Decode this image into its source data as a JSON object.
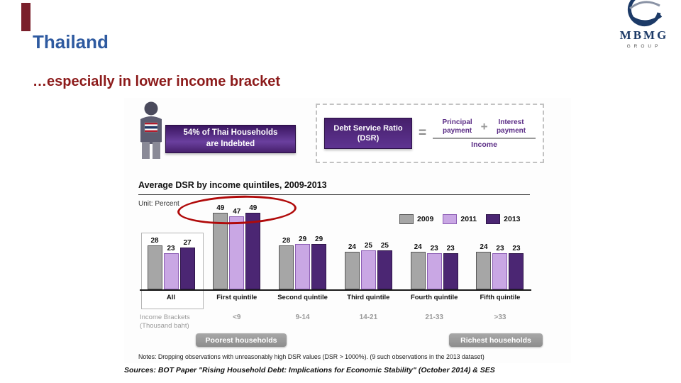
{
  "slide": {
    "title": "Thailand",
    "subtitle": "…especially in lower income bracket",
    "sources": "Sources: BOT Paper \"Rising Household Debt: Implications for Economic Stability\" (October 2014) & SES"
  },
  "logo": {
    "brand": "MBMG",
    "sub": "GROUP"
  },
  "infographic": {
    "banner_line1": "54% of Thai Households",
    "banner_line2": "are Indebted",
    "dsr_line1": "Debt Service Ratio",
    "dsr_line2": "(DSR)",
    "equals": "=",
    "principal": "Principal payment",
    "plus": "+",
    "interest": "Interest payment",
    "income": "Income"
  },
  "chart_data": {
    "type": "bar",
    "title": "Average DSR by income quintiles, 2009-2013",
    "unit_label": "Unit: Percent",
    "categories": [
      "All",
      "First quintile",
      "Second quintile",
      "Third quintile",
      "Fourth quintile",
      "Fifth quintile"
    ],
    "series": [
      {
        "name": "2009",
        "color": "#a6a6a6",
        "border": "#595959",
        "values": [
          28,
          49,
          28,
          24,
          24,
          24
        ]
      },
      {
        "name": "2011",
        "color": "#c9a7e4",
        "border": "#8d5fb5",
        "values": [
          23,
          47,
          29,
          25,
          23,
          23
        ]
      },
      {
        "name": "2013",
        "color": "#4b2673",
        "border": "#2e1549",
        "values": [
          27,
          49,
          29,
          25,
          23,
          23
        ]
      }
    ],
    "ylim": [
      0,
      55
    ],
    "grid": false,
    "legend_position": "top-right",
    "annotation": "red ellipse circling first-quintile values 49 47 49",
    "income_brackets_label": "Income Brackets (Thousand baht)",
    "income_brackets": [
      "<9",
      "9-14",
      "14-21",
      "21-33",
      ">33"
    ],
    "poorest_badge": "Poorest households",
    "richest_badge": "Richest households",
    "notes": "Notes: Dropping observations with unreasonably high DSR values (DSR > 1000%). (9 such observations in the 2013 dataset)"
  }
}
